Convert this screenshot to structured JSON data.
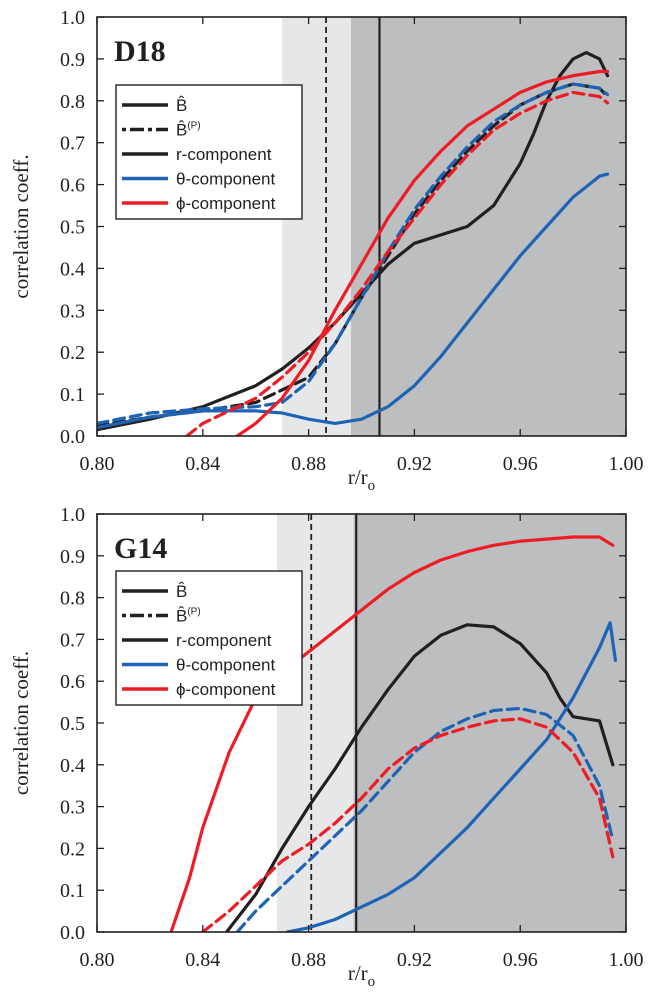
{
  "chart_data": [
    {
      "type": "line",
      "title": "D18",
      "xlabel": "r/r",
      "xlabel_sub": "o",
      "ylabel": "correlation coeff.",
      "xlim": [
        0.8,
        1.0
      ],
      "ylim": [
        0.0,
        1.0
      ],
      "xticks": [
        "0.80",
        "0.84",
        "0.88",
        "0.92",
        "0.96",
        "1.00"
      ],
      "yticks": [
        "0.0",
        "0.1",
        "0.2",
        "0.3",
        "0.4",
        "0.5",
        "0.6",
        "0.7",
        "0.8",
        "0.9",
        "1.0"
      ],
      "grid": false,
      "legend_position": "top-left",
      "legend": [
        {
          "label": "B̂",
          "style": "solid",
          "color": "#231f20"
        },
        {
          "label": "B̂",
          "sup": "(P)",
          "style": "dashed",
          "color": "#231f20"
        },
        {
          "label": "r-component",
          "style": "solid",
          "color": "#231f20"
        },
        {
          "label": "θ-component",
          "style": "solid",
          "color": "#1f64b4"
        },
        {
          "label": "ϕ-component",
          "style": "solid",
          "color": "#ee1c25"
        }
      ],
      "shaded_regions": [
        {
          "x0": 0.87,
          "x1": 0.896,
          "color": "#e6e7e8"
        },
        {
          "x0": 0.896,
          "x1": 1.0,
          "color": "#bcbec0"
        }
      ],
      "vlines": [
        {
          "x": 0.8866,
          "style": "dashed",
          "color": "#231f20"
        },
        {
          "x": 0.9068,
          "style": "solid",
          "color": "#231f20"
        }
      ],
      "series": [
        {
          "component": "r",
          "style": "solid",
          "color": "#231f20",
          "x": [
            0.8,
            0.82,
            0.84,
            0.86,
            0.87,
            0.88,
            0.89,
            0.9,
            0.91,
            0.92,
            0.93,
            0.94,
            0.95,
            0.96,
            0.965,
            0.97,
            0.975,
            0.98,
            0.985,
            0.99,
            0.993
          ],
          "y": [
            0.015,
            0.04,
            0.07,
            0.12,
            0.16,
            0.21,
            0.27,
            0.34,
            0.41,
            0.46,
            0.48,
            0.5,
            0.55,
            0.65,
            0.72,
            0.8,
            0.86,
            0.9,
            0.915,
            0.9,
            0.86
          ]
        },
        {
          "component": "r",
          "style": "dashed",
          "color": "#231f20",
          "x": [
            0.8,
            0.82,
            0.84,
            0.86,
            0.88,
            0.89,
            0.9,
            0.91,
            0.92,
            0.93,
            0.94,
            0.95,
            0.96,
            0.97,
            0.98,
            0.99,
            0.993
          ],
          "y": [
            0.025,
            0.045,
            0.06,
            0.08,
            0.14,
            0.22,
            0.33,
            0.43,
            0.53,
            0.61,
            0.68,
            0.74,
            0.79,
            0.82,
            0.84,
            0.83,
            0.81
          ]
        },
        {
          "component": "θ",
          "style": "solid",
          "color": "#1f64b4",
          "x": [
            0.8,
            0.82,
            0.84,
            0.86,
            0.87,
            0.88,
            0.89,
            0.9,
            0.91,
            0.92,
            0.93,
            0.94,
            0.95,
            0.96,
            0.97,
            0.98,
            0.99,
            0.993
          ],
          "y": [
            0.02,
            0.045,
            0.06,
            0.06,
            0.055,
            0.04,
            0.03,
            0.04,
            0.07,
            0.12,
            0.19,
            0.27,
            0.35,
            0.43,
            0.5,
            0.57,
            0.62,
            0.625
          ]
        },
        {
          "component": "θ",
          "style": "dashed",
          "color": "#1f64b4",
          "x": [
            0.8,
            0.82,
            0.84,
            0.86,
            0.87,
            0.88,
            0.89,
            0.9,
            0.91,
            0.92,
            0.93,
            0.94,
            0.95,
            0.96,
            0.97,
            0.98,
            0.99,
            0.993
          ],
          "y": [
            0.03,
            0.055,
            0.065,
            0.07,
            0.08,
            0.13,
            0.22,
            0.33,
            0.44,
            0.54,
            0.62,
            0.69,
            0.75,
            0.79,
            0.82,
            0.84,
            0.83,
            0.815
          ]
        },
        {
          "component": "ϕ",
          "style": "solid",
          "color": "#ee1c25",
          "x": [
            0.853,
            0.86,
            0.87,
            0.88,
            0.89,
            0.9,
            0.91,
            0.92,
            0.93,
            0.94,
            0.95,
            0.96,
            0.97,
            0.98,
            0.99,
            0.993
          ],
          "y": [
            0.0,
            0.03,
            0.09,
            0.18,
            0.3,
            0.41,
            0.52,
            0.61,
            0.68,
            0.74,
            0.78,
            0.82,
            0.845,
            0.86,
            0.87,
            0.87
          ]
        },
        {
          "component": "ϕ",
          "style": "dashed",
          "color": "#ee1c25",
          "x": [
            0.834,
            0.84,
            0.85,
            0.86,
            0.87,
            0.88,
            0.89,
            0.9,
            0.91,
            0.92,
            0.93,
            0.94,
            0.95,
            0.96,
            0.97,
            0.98,
            0.99,
            0.993
          ],
          "y": [
            0.0,
            0.03,
            0.06,
            0.09,
            0.14,
            0.2,
            0.27,
            0.35,
            0.44,
            0.52,
            0.6,
            0.67,
            0.73,
            0.77,
            0.8,
            0.82,
            0.81,
            0.795
          ]
        }
      ]
    },
    {
      "type": "line",
      "title": "G14",
      "xlabel": "r/r",
      "xlabel_sub": "o",
      "ylabel": "correlation coeff.",
      "xlim": [
        0.8,
        1.0
      ],
      "ylim": [
        0.0,
        1.0
      ],
      "xticks": [
        "0.80",
        "0.84",
        "0.88",
        "0.92",
        "0.96",
        "1.00"
      ],
      "yticks": [
        "0.0",
        "0.1",
        "0.2",
        "0.3",
        "0.4",
        "0.5",
        "0.6",
        "0.7",
        "0.8",
        "0.9",
        "1.0"
      ],
      "grid": false,
      "legend_position": "top-left",
      "legend": [
        {
          "label": "B̂",
          "style": "solid",
          "color": "#231f20"
        },
        {
          "label": "B̂",
          "sup": "(P)",
          "style": "dashed",
          "color": "#231f20"
        },
        {
          "label": "r-component",
          "style": "solid",
          "color": "#231f20"
        },
        {
          "label": "θ-component",
          "style": "solid",
          "color": "#1f64b4"
        },
        {
          "label": "ϕ-component",
          "style": "solid",
          "color": "#ee1c25"
        }
      ],
      "shaded_regions": [
        {
          "x0": 0.868,
          "x1": 0.897,
          "color": "#e6e7e8"
        },
        {
          "x0": 0.897,
          "x1": 1.0,
          "color": "#bcbec0"
        }
      ],
      "vlines": [
        {
          "x": 0.881,
          "style": "dashed",
          "color": "#231f20"
        },
        {
          "x": 0.898,
          "style": "solid",
          "color": "#231f20"
        }
      ],
      "series": [
        {
          "component": "r",
          "style": "solid",
          "color": "#231f20",
          "x": [
            0.849,
            0.86,
            0.87,
            0.88,
            0.89,
            0.9,
            0.91,
            0.92,
            0.93,
            0.94,
            0.95,
            0.96,
            0.97,
            0.975,
            0.98,
            0.985,
            0.99,
            0.995
          ],
          "y": [
            0.0,
            0.09,
            0.2,
            0.3,
            0.39,
            0.49,
            0.58,
            0.66,
            0.71,
            0.735,
            0.73,
            0.69,
            0.62,
            0.56,
            0.515,
            0.51,
            0.505,
            0.4
          ]
        },
        {
          "component": "θ",
          "style": "solid",
          "color": "#1f64b4",
          "x": [
            0.872,
            0.88,
            0.89,
            0.9,
            0.91,
            0.92,
            0.93,
            0.94,
            0.95,
            0.96,
            0.97,
            0.98,
            0.99,
            0.994,
            0.996
          ],
          "y": [
            0.0,
            0.01,
            0.03,
            0.06,
            0.09,
            0.13,
            0.19,
            0.25,
            0.32,
            0.39,
            0.46,
            0.56,
            0.68,
            0.74,
            0.65
          ]
        },
        {
          "component": "θ",
          "style": "dashed",
          "color": "#1f64b4",
          "x": [
            0.853,
            0.86,
            0.87,
            0.88,
            0.89,
            0.9,
            0.91,
            0.92,
            0.93,
            0.94,
            0.95,
            0.96,
            0.97,
            0.98,
            0.99,
            0.995
          ],
          "y": [
            0.0,
            0.05,
            0.11,
            0.17,
            0.23,
            0.29,
            0.36,
            0.43,
            0.48,
            0.51,
            0.53,
            0.535,
            0.52,
            0.47,
            0.35,
            0.22
          ]
        },
        {
          "component": "ϕ",
          "style": "solid",
          "color": "#ee1c25",
          "x": [
            0.828,
            0.835,
            0.84,
            0.85,
            0.86,
            0.87,
            0.88,
            0.89,
            0.9,
            0.91,
            0.92,
            0.93,
            0.94,
            0.95,
            0.96,
            0.97,
            0.98,
            0.99,
            0.995
          ],
          "y": [
            0.0,
            0.13,
            0.25,
            0.43,
            0.56,
            0.62,
            0.67,
            0.72,
            0.77,
            0.82,
            0.86,
            0.89,
            0.91,
            0.925,
            0.935,
            0.94,
            0.945,
            0.945,
            0.925
          ]
        },
        {
          "component": "ϕ",
          "style": "dashed",
          "color": "#ee1c25",
          "x": [
            0.84,
            0.85,
            0.86,
            0.87,
            0.88,
            0.89,
            0.9,
            0.91,
            0.92,
            0.93,
            0.94,
            0.95,
            0.96,
            0.97,
            0.98,
            0.99,
            0.995
          ],
          "y": [
            0.0,
            0.05,
            0.11,
            0.17,
            0.21,
            0.26,
            0.32,
            0.39,
            0.44,
            0.47,
            0.49,
            0.505,
            0.51,
            0.49,
            0.43,
            0.32,
            0.18
          ]
        }
      ]
    }
  ]
}
